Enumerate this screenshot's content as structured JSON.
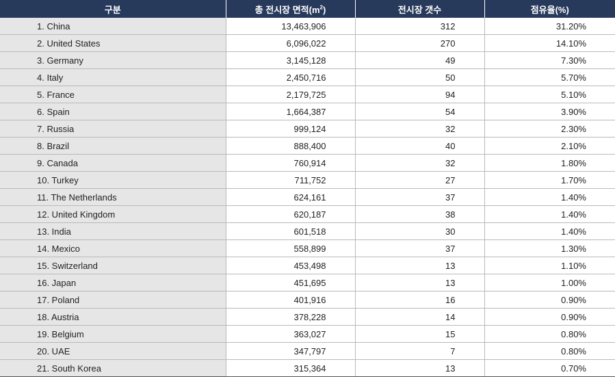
{
  "table": {
    "headers": {
      "category": "구분",
      "area_prefix": "총 전시장 면적(m",
      "area_sup": "2",
      "area_suffix": ")",
      "count": "전시장 갯수",
      "share": "점유율(%)"
    },
    "rows": [
      {
        "country": "1. China",
        "area": "13,463,906",
        "count": "312",
        "share": "31.20%"
      },
      {
        "country": "2. United States",
        "area": "6,096,022",
        "count": "270",
        "share": "14.10%"
      },
      {
        "country": "3. Germany",
        "area": "3,145,128",
        "count": "49",
        "share": "7.30%"
      },
      {
        "country": "4. Italy",
        "area": "2,450,716",
        "count": "50",
        "share": "5.70%"
      },
      {
        "country": "5. France",
        "area": "2,179,725",
        "count": "94",
        "share": "5.10%"
      },
      {
        "country": "6. Spain",
        "area": "1,664,387",
        "count": "54",
        "share": "3.90%"
      },
      {
        "country": "7. Russia",
        "area": "999,124",
        "count": "32",
        "share": "2.30%"
      },
      {
        "country": "8. Brazil",
        "area": "888,400",
        "count": "40",
        "share": "2.10%"
      },
      {
        "country": "9. Canada",
        "area": "760,914",
        "count": "32",
        "share": "1.80%"
      },
      {
        "country": "10. Turkey",
        "area": "711,752",
        "count": "27",
        "share": "1.70%"
      },
      {
        "country": "11. The Netherlands",
        "area": "624,161",
        "count": "37",
        "share": "1.40%"
      },
      {
        "country": "12. United Kingdom",
        "area": "620,187",
        "count": "38",
        "share": "1.40%"
      },
      {
        "country": "13. India",
        "area": "601,518",
        "count": "30",
        "share": "1.40%"
      },
      {
        "country": "14. Mexico",
        "area": "558,899",
        "count": "37",
        "share": "1.30%"
      },
      {
        "country": "15. Switzerland",
        "area": "453,498",
        "count": "13",
        "share": "1.10%"
      },
      {
        "country": "16. Japan",
        "area": "451,695",
        "count": "13",
        "share": "1.00%"
      },
      {
        "country": "17. Poland",
        "area": "401,916",
        "count": "16",
        "share": "0.90%"
      },
      {
        "country": "18. Austria",
        "area": "378,228",
        "count": "14",
        "share": "0.90%"
      },
      {
        "country": "19. Belgium",
        "area": "363,027",
        "count": "15",
        "share": "0.80%"
      },
      {
        "country": "20. UAE",
        "area": "347,797",
        "count": "7",
        "share": "0.80%"
      },
      {
        "country": "21. South Korea",
        "area": "315,364",
        "count": "13",
        "share": "0.70%"
      }
    ]
  },
  "colors": {
    "header_bg": "#283a5c",
    "header_text": "#ffffff",
    "first_col_bg": "#e6e6e6",
    "grid_line": "#b9b9b9"
  }
}
